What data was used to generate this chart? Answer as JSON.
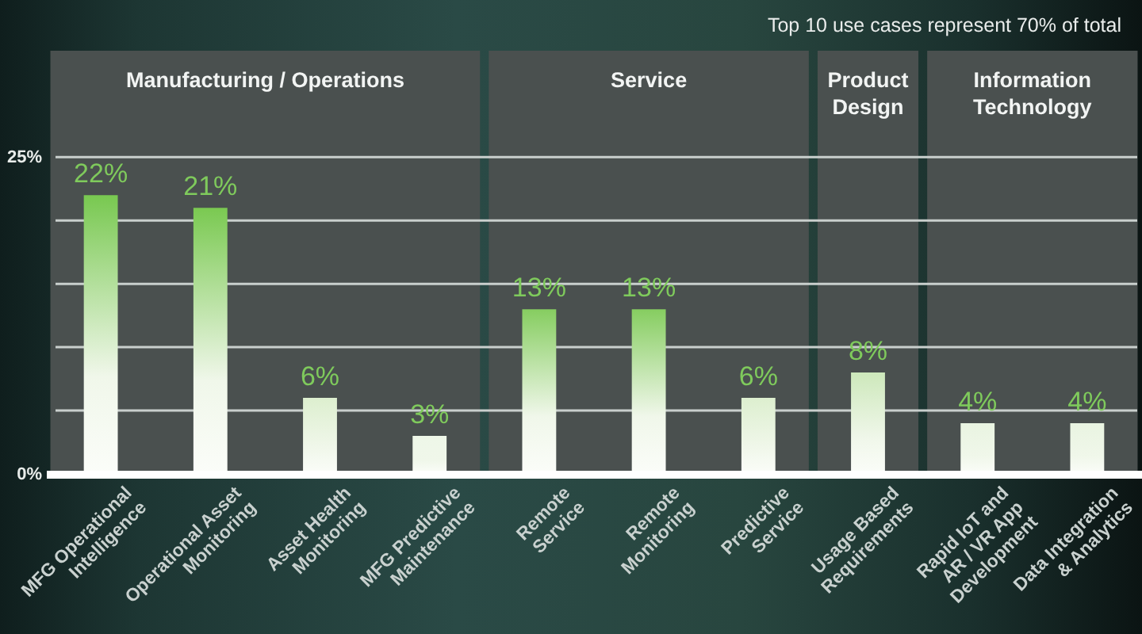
{
  "chart_data": {
    "type": "bar",
    "categories": [
      "MFG Operational\nIntelligence",
      "Operational Asset\nMonitoring",
      "Asset Health\nMonitoring",
      "MFG Predictive\nMaintenance",
      "Remote\nService",
      "Remote\nMonitoring",
      "Predictive\nService",
      "Usage Based\nRequirements",
      "Rapid IoT and\nAR / VR App\nDevelopment",
      "Data Integration\n& Analytics"
    ],
    "values": [
      22,
      21,
      6,
      3,
      13,
      13,
      6,
      8,
      4,
      4
    ],
    "value_labels": [
      "22%",
      "21%",
      "6%",
      "3%",
      "13%",
      "13%",
      "6%",
      "8%",
      "4%",
      "4%"
    ],
    "colors": [
      "#78c850",
      "#7ac951",
      "#ddefcf",
      "#eef7e8",
      "#86cd60",
      "#86cd60",
      "#ddefcf",
      "#cde8bb",
      "#e9f4e1",
      "#e9f4e1"
    ],
    "ylim": [
      0,
      33.4
    ],
    "yticks": [
      {
        "value": 0,
        "label": "0%"
      },
      {
        "value": 5,
        "label": null
      },
      {
        "value": 10,
        "label": null
      },
      {
        "value": 15,
        "label": null
      },
      {
        "value": 20,
        "label": null
      },
      {
        "value": 25,
        "label": "25%"
      }
    ],
    "grid": "y",
    "bands": [
      {
        "axis": "x",
        "from": "MFG Operational\nIntelligence",
        "to": "MFG Predictive\nMaintenance",
        "label": "Manufacturing / Operations",
        "color": "#4a504f"
      },
      {
        "axis": "x",
        "from": "Remote\nService",
        "to": "Predictive\nService",
        "label": "Service",
        "color": "#4a504f"
      },
      {
        "axis": "x",
        "from": "Usage Based\nRequirements",
        "to": "Usage Based\nRequirements",
        "label": "Product\nDesign",
        "color": "#4a504f"
      },
      {
        "axis": "x",
        "from": "Rapid IoT and\nAR / VR App\nDevelopment",
        "to": "Data Integration\n& Analytics",
        "label": "Information\nTechnology",
        "color": "#4a504f"
      }
    ],
    "annotations": [
      "Top 10 use cases represent 70% of total"
    ]
  }
}
